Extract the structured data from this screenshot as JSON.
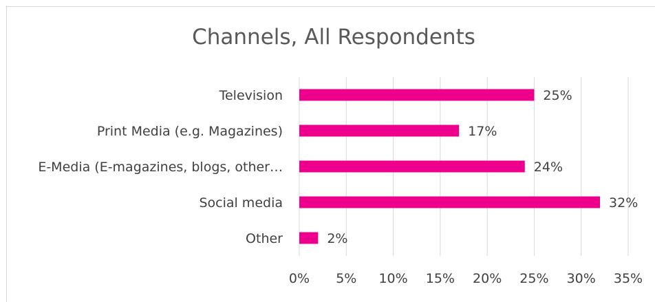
{
  "chart_data": {
    "type": "bar",
    "orientation": "horizontal",
    "title": "Channels, All Respondents",
    "categories": [
      "Television",
      "Print Media (e.g. Magazines)",
      "E-Media (E-magazines, blogs, other…",
      "Social media",
      "Other"
    ],
    "values": [
      25,
      17,
      24,
      32,
      2
    ],
    "data_labels": [
      "25%",
      "17%",
      "24%",
      "32%",
      "2%"
    ],
    "x_ticks": [
      "0%",
      "5%",
      "10%",
      "15%",
      "20%",
      "25%",
      "30%",
      "35%"
    ],
    "xlim": [
      0,
      35
    ],
    "grid": true,
    "legend": "none",
    "xlabel": "",
    "ylabel": ""
  },
  "colors": {
    "bar": "#EC008C",
    "grid": "#d9d9d9",
    "text": "#404040",
    "title": "#595959"
  }
}
